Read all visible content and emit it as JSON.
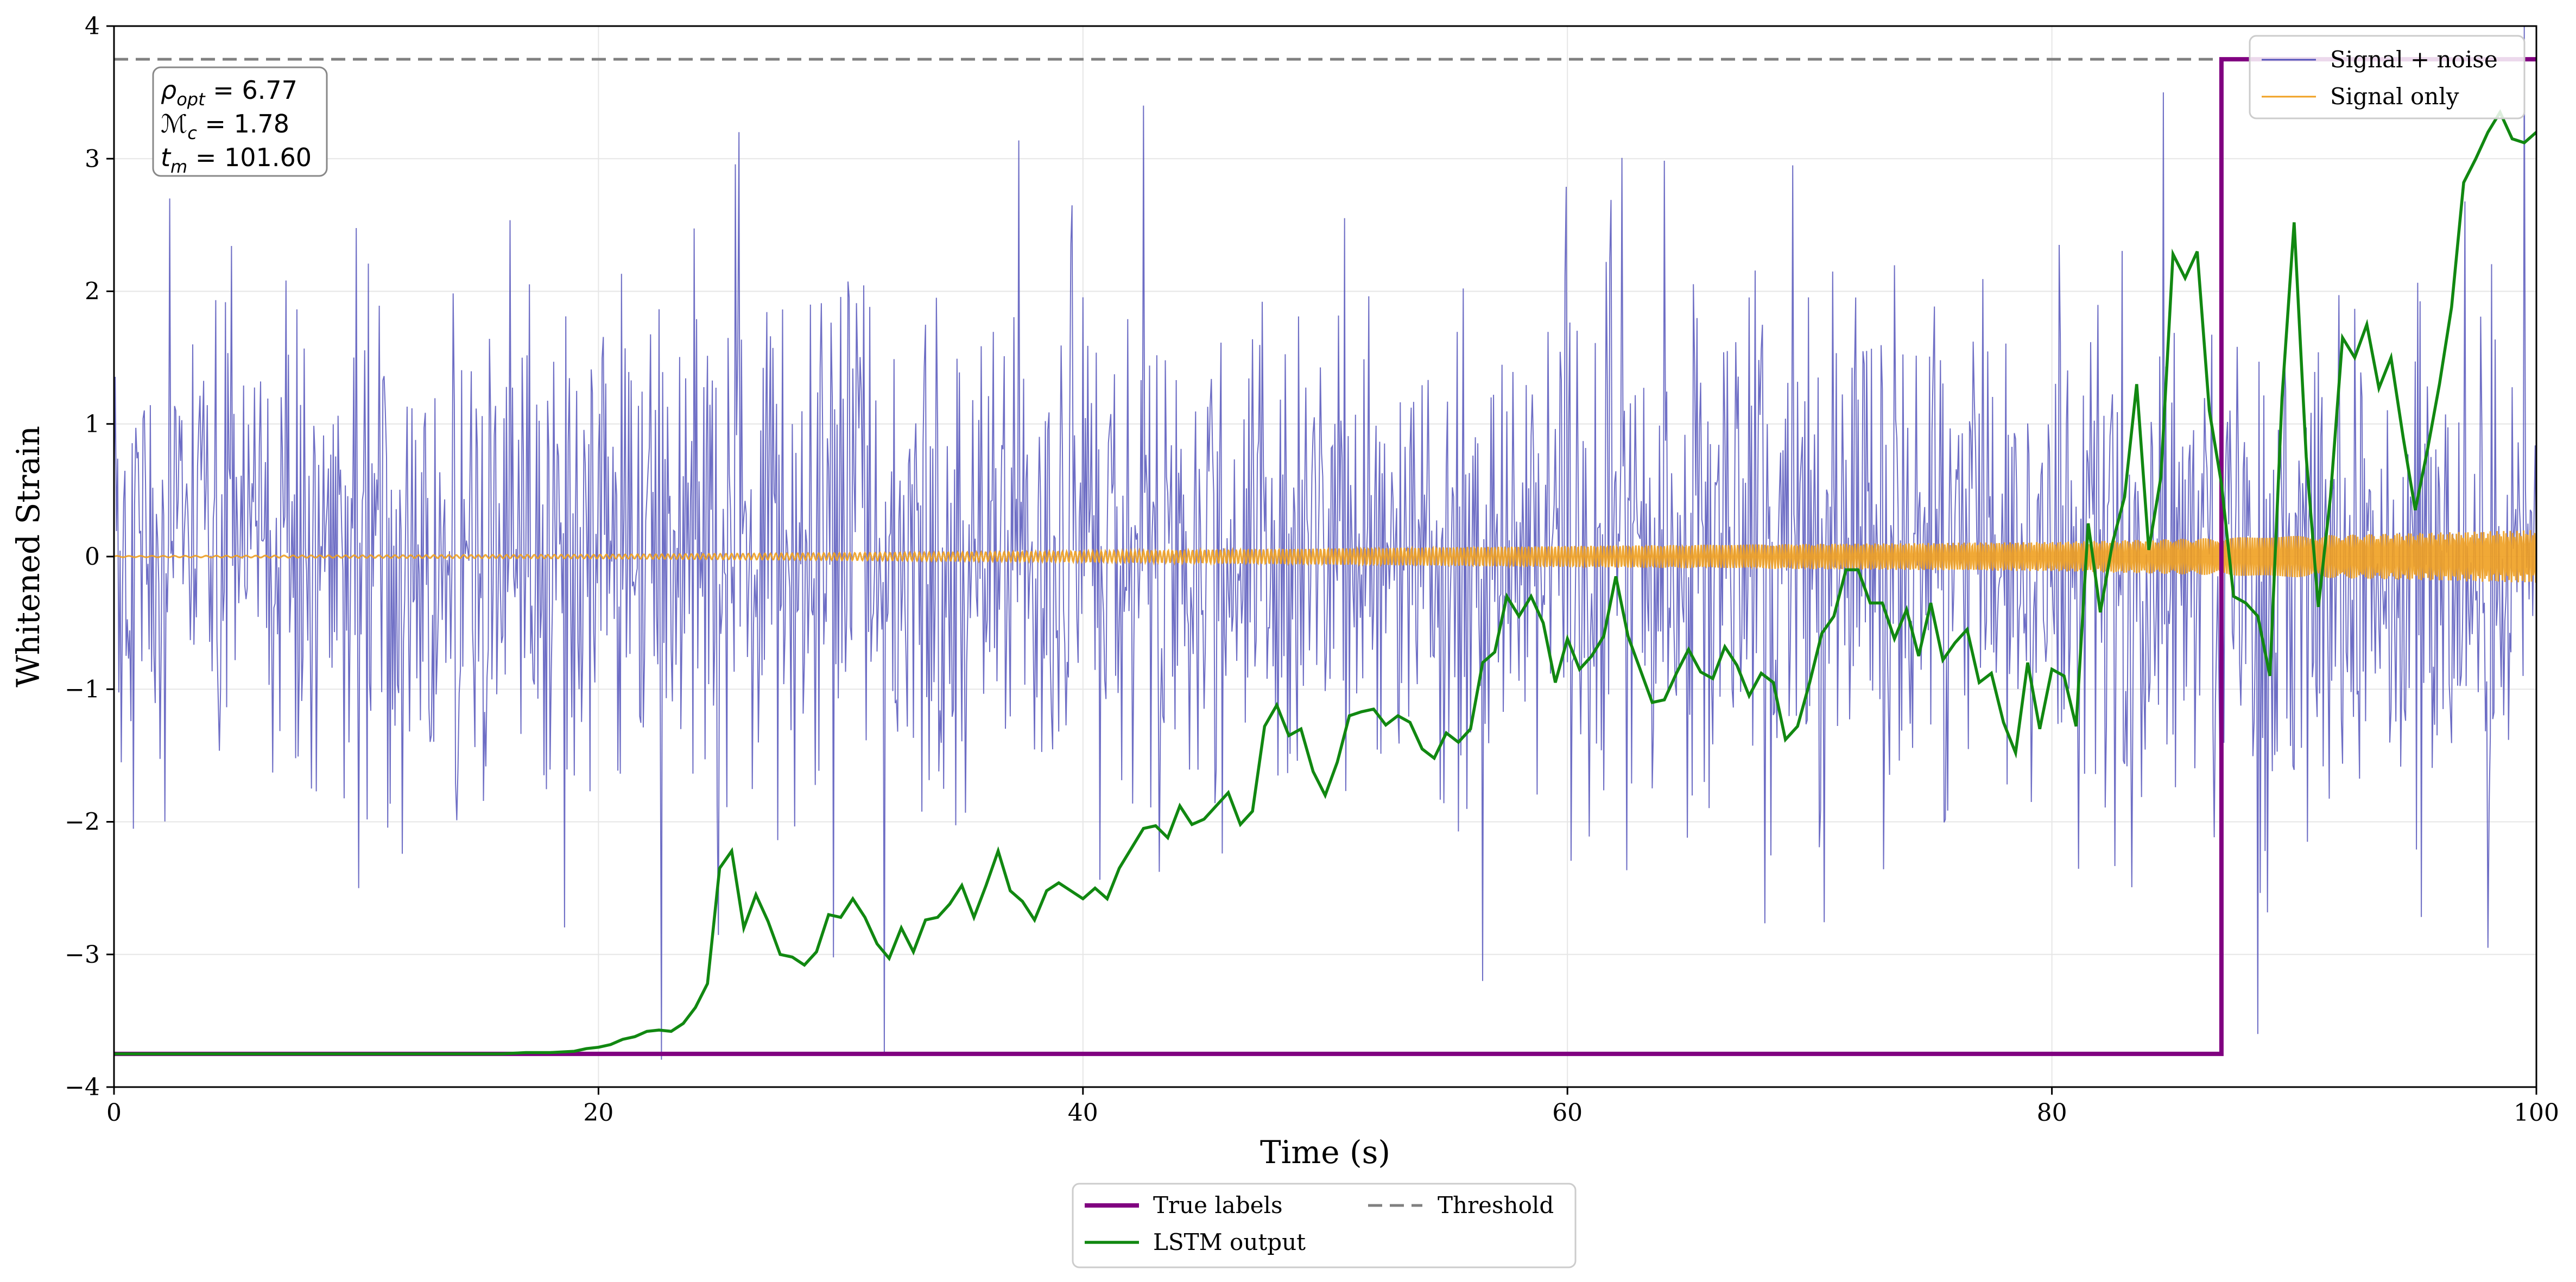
{
  "chart_data": {
    "type": "line",
    "title": "",
    "xlabel": "Time (s)",
    "ylabel": "Whitened Strain",
    "xlim": [
      0,
      100
    ],
    "ylim": [
      -4,
      4
    ],
    "xticks": [
      0,
      20,
      40,
      60,
      80,
      100
    ],
    "yticks": [
      -4,
      -3,
      -2,
      -1,
      0,
      1,
      2,
      3,
      4
    ],
    "xtick_labels": [
      "0",
      "20",
      "40",
      "60",
      "80",
      "100"
    ],
    "ytick_labels": [
      "−4",
      "−3",
      "−2",
      "−1",
      "0",
      "1",
      "2",
      "3",
      "4"
    ],
    "grid": true,
    "colors": {
      "signal_noise": "#5555bb",
      "signal_only": "#f0a020",
      "true_labels": "#800080",
      "lstm": "#118811",
      "threshold": "#808080"
    },
    "series": [
      {
        "name": "Signal + noise",
        "style": "noise-trace",
        "sample_step": 0.05,
        "amplitude_rms": 0.95,
        "notable_peaks": [
          [
            2.3,
            2.7
          ],
          [
            10.1,
            -2.5
          ],
          [
            25.8,
            3.2
          ],
          [
            31.8,
            -3.75
          ],
          [
            42.5,
            3.4
          ],
          [
            56.5,
            -3.2
          ],
          [
            84.6,
            3.5
          ],
          [
            88.5,
            -3.6
          ],
          [
            98.0,
            -2.95
          ],
          [
            99.5,
            4.0
          ]
        ]
      },
      {
        "name": "Signal only",
        "style": "chirp",
        "envelope": [
          [
            0,
            0.005
          ],
          [
            20,
            0.015
          ],
          [
            40,
            0.04
          ],
          [
            60,
            0.08
          ],
          [
            80,
            0.11
          ],
          [
            100,
            0.2
          ]
        ]
      },
      {
        "name": "True labels",
        "style": "step",
        "x": [
          0,
          87.0,
          87.0,
          100
        ],
        "y": [
          -3.75,
          -3.75,
          3.75,
          3.75
        ]
      },
      {
        "name": "LSTM output",
        "style": "line",
        "x": [
          0,
          16,
          17,
          18,
          19,
          19.5,
          20,
          20.5,
          21,
          21.5,
          22,
          22.5,
          23,
          23.5,
          24,
          24.5,
          25,
          25.5,
          26,
          26.5,
          27,
          27.5,
          28,
          28.5,
          29,
          29.5,
          30,
          30.5,
          31,
          31.5,
          32,
          32.5,
          33,
          33.5,
          34,
          34.5,
          35,
          35.5,
          36,
          36.5,
          37,
          37.5,
          38,
          38.5,
          39,
          39.5,
          40,
          40.5,
          41,
          41.5,
          42,
          42.5,
          43,
          43.5,
          44,
          44.5,
          45,
          45.5,
          46,
          46.5,
          47,
          47.5,
          48,
          48.5,
          49,
          49.5,
          50,
          50.5,
          51,
          51.5,
          52,
          52.5,
          53,
          53.5,
          54,
          54.5,
          55,
          55.5,
          56,
          56.5,
          57,
          57.5,
          58,
          58.5,
          59,
          59.5,
          60,
          60.5,
          61,
          61.5,
          62,
          62.5,
          63,
          63.5,
          64,
          64.5,
          65,
          65.5,
          66,
          66.5,
          67,
          67.5,
          68,
          68.5,
          69,
          69.5,
          70,
          70.5,
          71,
          71.5,
          72,
          72.5,
          73,
          73.5,
          74,
          74.5,
          75,
          75.5,
          76,
          76.5,
          77,
          77.5,
          78,
          78.5,
          79,
          79.5,
          80,
          80.5,
          81,
          81.5,
          82,
          82.5,
          83,
          83.5,
          84,
          84.5,
          85,
          85.5,
          86,
          86.5,
          87,
          87.5,
          88,
          88.5,
          89,
          89.5,
          90,
          90.5,
          91,
          91.5,
          92,
          92.5,
          93,
          93.5,
          94,
          94.5,
          95,
          95.5,
          96,
          96.5,
          97,
          97.5,
          98,
          98.5,
          99,
          99.5,
          100
        ],
        "y": [
          -3.75,
          -3.75,
          -3.74,
          -3.74,
          -3.73,
          -3.71,
          -3.7,
          -3.68,
          -3.64,
          -3.62,
          -3.58,
          -3.57,
          -3.58,
          -3.52,
          -3.4,
          -3.22,
          -2.35,
          -2.22,
          -2.8,
          -2.55,
          -2.75,
          -3.0,
          -3.02,
          -3.08,
          -2.98,
          -2.7,
          -2.72,
          -2.58,
          -2.72,
          -2.92,
          -3.03,
          -2.8,
          -2.98,
          -2.74,
          -2.72,
          -2.62,
          -2.48,
          -2.72,
          -2.48,
          -2.22,
          -2.52,
          -2.6,
          -2.74,
          -2.52,
          -2.46,
          -2.52,
          -2.58,
          -2.5,
          -2.58,
          -2.35,
          -2.2,
          -2.05,
          -2.03,
          -2.12,
          -1.88,
          -2.02,
          -1.98,
          -1.88,
          -1.78,
          -2.02,
          -1.92,
          -1.28,
          -1.12,
          -1.35,
          -1.3,
          -1.62,
          -1.8,
          -1.55,
          -1.2,
          -1.17,
          -1.15,
          -1.27,
          -1.2,
          -1.25,
          -1.45,
          -1.52,
          -1.33,
          -1.4,
          -1.3,
          -0.8,
          -0.72,
          -0.3,
          -0.45,
          -0.3,
          -0.5,
          -0.95,
          -0.62,
          -0.85,
          -0.75,
          -0.6,
          -0.15,
          -0.6,
          -0.85,
          -1.1,
          -1.08,
          -0.88,
          -0.7,
          -0.87,
          -0.92,
          -0.68,
          -0.82,
          -1.05,
          -0.88,
          -0.95,
          -1.38,
          -1.28,
          -0.95,
          -0.58,
          -0.45,
          -0.1,
          -0.1,
          -0.35,
          -0.35,
          -0.62,
          -0.4,
          -0.75,
          -0.35,
          -0.78,
          -0.65,
          -0.55,
          -0.95,
          -0.88,
          -1.25,
          -1.48,
          -0.8,
          -1.3,
          -0.85,
          -0.9,
          -1.28,
          0.25,
          -0.42,
          0.1,
          0.45,
          1.3,
          0.05,
          0.6,
          2.28,
          2.1,
          2.3,
          1.1,
          0.55,
          -0.3,
          -0.35,
          -0.45,
          -0.9,
          1.2,
          2.52,
          0.75,
          -0.38,
          0.45,
          1.65,
          1.5,
          1.75,
          1.27,
          1.5,
          0.9,
          0.35,
          0.8,
          1.3,
          1.88,
          2.82,
          3.0,
          3.2,
          3.35,
          3.15,
          3.12,
          3.2
        ]
      },
      {
        "name": "Threshold",
        "style": "hline",
        "y": 3.75
      }
    ],
    "legend_upper_right": [
      "Signal + noise",
      "Signal only"
    ],
    "legend_bottom": [
      "True labels",
      "Threshold",
      "LSTM output"
    ],
    "annotation": {
      "rho_opt": "6.77",
      "M_c": "1.78",
      "t_m": "101.60"
    }
  }
}
